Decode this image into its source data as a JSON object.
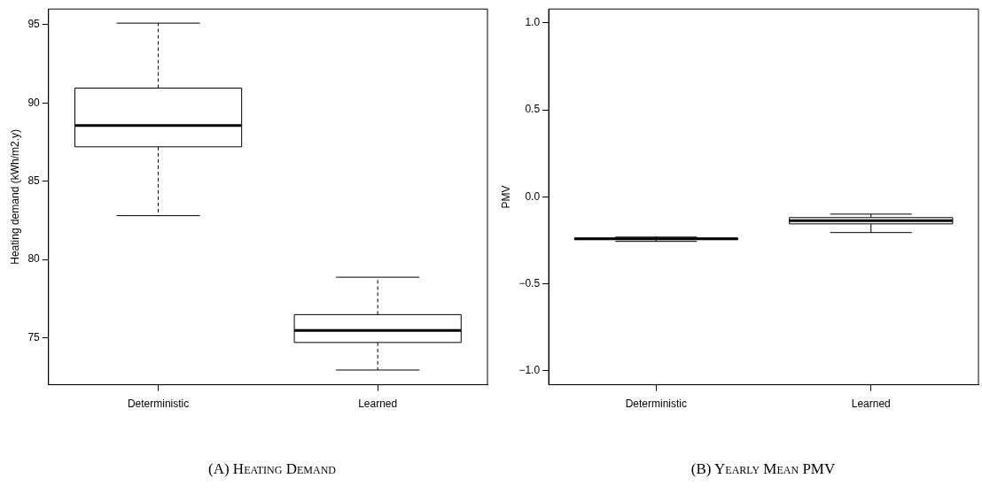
{
  "chart_data": [
    {
      "type": "box",
      "title": "(A) Heating Demand",
      "ylabel": "Heating demand (kWh/m2.y)",
      "categories": [
        "Deterministic",
        "Learned"
      ],
      "boxes": [
        {
          "low": 82.8,
          "q1": 87.2,
          "median": 88.56,
          "q3": 90.95,
          "high": 95.1
        },
        {
          "low": 72.94,
          "q1": 74.7,
          "median": 75.47,
          "q3": 76.48,
          "high": 78.87
        }
      ],
      "ylim": [
        72,
        96
      ],
      "yticks": [
        75,
        80,
        85,
        90,
        95
      ],
      "grid": false
    },
    {
      "type": "box",
      "title": "(B) Yearly Mean PMV",
      "ylabel": "PMV",
      "categories": [
        "Deterministic",
        "Learned"
      ],
      "boxes": [
        {
          "low": -0.256,
          "q1": -0.245,
          "median": -0.241,
          "q3": -0.237,
          "high": -0.231
        },
        {
          "low": -0.205,
          "q1": -0.155,
          "median": -0.137,
          "q3": -0.119,
          "high": -0.099
        }
      ],
      "ylim": [
        -1.08,
        1.08
      ],
      "yticks": [
        {
          "value": -1,
          "label": "−1.0"
        },
        {
          "value": -0.5,
          "label": "−0.5"
        },
        {
          "value": 0,
          "label": "0.0"
        },
        {
          "value": 0.5,
          "label": "0.5"
        },
        {
          "value": 1,
          "label": "1.0"
        }
      ],
      "grid": false
    }
  ]
}
